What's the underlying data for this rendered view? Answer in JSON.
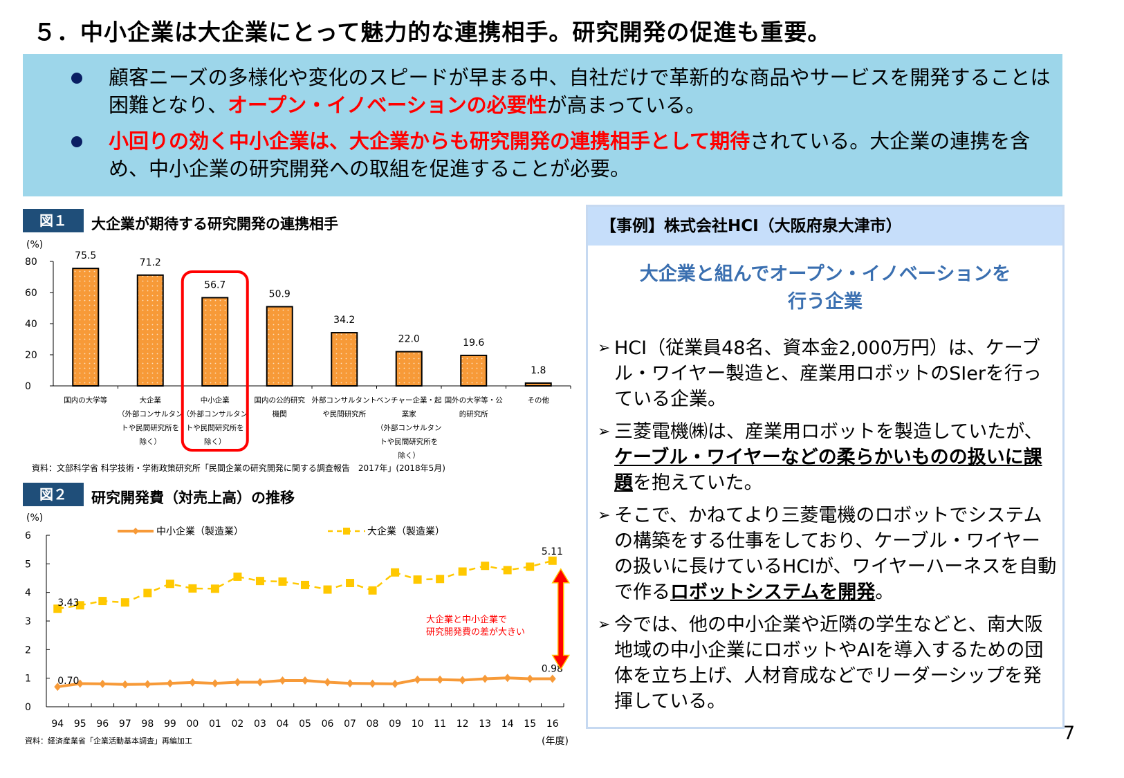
{
  "page": {
    "title": "５．中小企業は大企業にとって魅力的な連携相手。研究開発の促進も重要。",
    "page_number": "7"
  },
  "summary": {
    "bullets": [
      {
        "pre": "顧客ニーズの多様化や変化のスピードが早まる中、自社だけで革新的な商品やサービスを開発することは困難となり、",
        "emph": "オープン・イノベーションの必要性",
        "post": "が高まっている。"
      },
      {
        "pre": "",
        "emph": "小回りの効く中小企業は、大企業からも研究開発の連携相手として期待",
        "post": "されている。大企業の連携を含め、中小企業の研究開発への取組を促進することが必要。"
      }
    ]
  },
  "figure1": {
    "tag": "図１",
    "title": "大企業が期待する研究開発の連携相手",
    "source": "資料：文部科学省 科学技術・学術政策研究所「民間企業の研究開発に関する調査報告　2017年」(2018年5月)"
  },
  "figure2": {
    "tag": "図２",
    "title": "研究開発費（対売上高）の推移",
    "source": "資料：経済産業省「企業活動基本調査」再編加工",
    "annotation": [
      "大企業と中小企業で",
      "研究開発費の差が大きい"
    ]
  },
  "case": {
    "header": "【事例】株式会社HCI（大阪府泉大津市）",
    "subtitle": [
      "大企業と組んでオープン・イノベーションを",
      "行う企業"
    ],
    "items": [
      {
        "pre": "HCI（従業員48名、資本金2,000万円）は、ケーブル・ワイヤー製造と、産業用ロボットのSIerを行っている企業。",
        "bold": "",
        "post": ""
      },
      {
        "pre": "三菱電機㈱は、産業用ロボットを製造していたが、",
        "bold": "ケーブル・ワイヤーなどの柔らかいものの扱いに課題",
        "post": "を抱えていた。"
      },
      {
        "pre": "そこで、かねてより三菱電機のロボットでシステムの構築をする仕事をしており、ケーブル・ワイヤーの扱いに長けているHCIが、ワイヤーハーネスを自動で作る",
        "bold": "ロボットシステムを開発",
        "post": "。"
      },
      {
        "pre": "今では、他の中小企業や近隣の学生などと、南大阪地域の中小企業にロボットやAIを導入するための団体を立ち上げ、人材育成などでリーダーシップを発揮している。",
        "bold": "",
        "post": ""
      }
    ]
  },
  "colors": {
    "summary_bg": "#9dd6ea",
    "emphasis_red": "#ff0000",
    "bar_orange": "#f79a38",
    "line_small": "#f79a38",
    "line_large": "#ffc800",
    "fig_tag_bg": "#1f4e79",
    "case_header_bg": "#c6defa",
    "case_subtitle": "#3a6fb0"
  },
  "chart_data": [
    {
      "type": "bar",
      "title": "大企業が期待する研究開発の連携相手",
      "ylabel": "(%)",
      "ylim": [
        0,
        80
      ],
      "yticks": [
        0,
        20,
        40,
        60,
        80
      ],
      "categories": [
        "国内の大学等",
        "大企業（外部コンサルタントや民間研究所を除く）",
        "中小企業（外部コンサルタントや民間研究所を除く）",
        "国内の公的研究機関",
        "外部コンサルタントや民間研究所",
        "ベンチャー企業・起業家（外部コンサルタントや民間研究所を除く）",
        "国外の大学等・公的研究所",
        "その他"
      ],
      "category_lines": [
        [
          "国内の大学等"
        ],
        [
          "大企業",
          "（外部コンサルタン",
          "トや民間研究所を",
          "除く）"
        ],
        [
          "中小企業",
          "（外部コンサルタン",
          "トや民間研究所を",
          "除く）"
        ],
        [
          "国内の公的研究",
          "機関"
        ],
        [
          "外部コンサルタント",
          "や民間研究所"
        ],
        [
          "ベンチャー企業・起",
          "業家",
          "（外部コンサルタン",
          "トや民間研究所を",
          "除く）"
        ],
        [
          "国外の大学等・公",
          "的研究所"
        ],
        [
          "その他"
        ]
      ],
      "values": [
        75.5,
        71.2,
        56.7,
        50.9,
        34.2,
        22.0,
        19.6,
        1.8
      ],
      "value_labels": [
        "75.5",
        "71.2",
        "56.7",
        "50.9",
        "34.2",
        "22.0",
        "19.6",
        "1.8"
      ],
      "highlight_index": 2,
      "grid": false
    },
    {
      "type": "line",
      "title": "研究開発費（対売上高）の推移",
      "ylabel": "(%)",
      "xlabel": "(年度)",
      "ylim": [
        0,
        6
      ],
      "yticks": [
        0,
        1,
        2,
        3,
        4,
        5,
        6
      ],
      "x": [
        "94",
        "95",
        "96",
        "97",
        "98",
        "99",
        "00",
        "01",
        "02",
        "03",
        "04",
        "05",
        "06",
        "07",
        "08",
        "09",
        "10",
        "11",
        "12",
        "13",
        "14",
        "15",
        "16"
      ],
      "series": [
        {
          "name": "中小企業（製造業）",
          "values": [
            0.7,
            0.81,
            0.8,
            0.78,
            0.79,
            0.82,
            0.85,
            0.82,
            0.86,
            0.86,
            0.92,
            0.92,
            0.86,
            0.82,
            0.81,
            0.8,
            0.95,
            0.95,
            0.93,
            0.98,
            1.01,
            0.98,
            0.98
          ],
          "labels": {
            "first": "0.70",
            "last": "0.98"
          }
        },
        {
          "name": "大企業（製造業）",
          "values": [
            3.43,
            3.55,
            3.7,
            3.65,
            3.98,
            4.3,
            4.14,
            4.13,
            4.55,
            4.4,
            4.38,
            4.26,
            4.1,
            4.33,
            4.07,
            4.7,
            4.45,
            4.47,
            4.73,
            4.93,
            4.78,
            4.9,
            5.11
          ],
          "labels": {
            "first": "3.43",
            "last": "5.11"
          }
        }
      ],
      "legend_position": "top",
      "grid": false
    }
  ]
}
